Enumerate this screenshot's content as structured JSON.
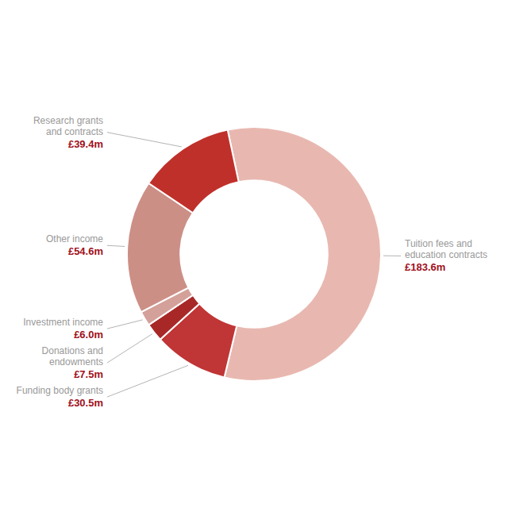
{
  "chart_data": {
    "type": "pie",
    "categories": [
      "Tuition fees and\neducation contracts",
      "Funding body grants",
      "Donations and\nendowments",
      "Investment income",
      "Other income",
      "Research grants\nand contracts"
    ],
    "values": [
      183.6,
      30.5,
      7.5,
      6.0,
      54.6,
      39.4
    ],
    "value_labels": [
      "£183.6m",
      "£30.5m",
      "£7.5m",
      "£6.0m",
      "£54.6m",
      "£39.4m"
    ],
    "colors": [
      "#e8b8b0",
      "#c03535",
      "#a82828",
      "#d4a09a",
      "#cc8f86",
      "#c0302a"
    ],
    "data_labels": true
  }
}
